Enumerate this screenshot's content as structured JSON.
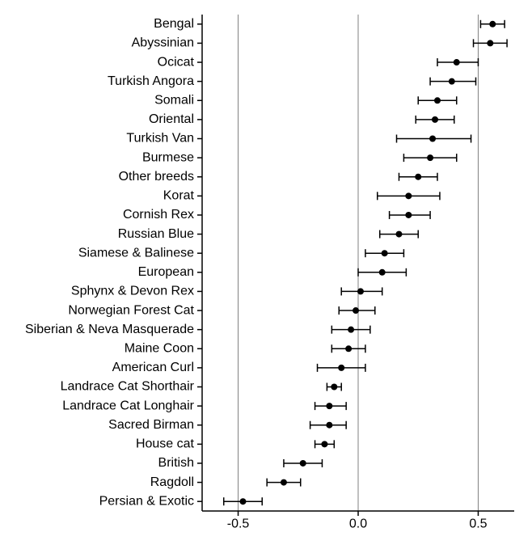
{
  "chart": {
    "type": "forest",
    "background_color": "#ffffff",
    "xlim": [
      -0.65,
      0.65
    ],
    "xticks": [
      -0.5,
      0.0,
      0.5
    ],
    "xtick_labels": [
      "-0.5",
      "0.0",
      "0.5"
    ],
    "gridlines_x": [
      -0.5,
      0.0,
      0.5
    ],
    "gridline_color": "#808080",
    "axis_color": "#000000",
    "point_color": "#000000",
    "label_fontsize": 16,
    "tick_fontsize": 16,
    "point_radius": 4,
    "errorbar_width": 1.5,
    "cap_half_height": 5,
    "items": [
      {
        "label": "Bengal",
        "value": 0.56,
        "low": 0.51,
        "high": 0.61
      },
      {
        "label": "Abyssinian",
        "value": 0.55,
        "low": 0.48,
        "high": 0.62
      },
      {
        "label": "Ocicat",
        "value": 0.41,
        "low": 0.33,
        "high": 0.5
      },
      {
        "label": "Turkish Angora",
        "value": 0.39,
        "low": 0.3,
        "high": 0.49
      },
      {
        "label": "Somali",
        "value": 0.33,
        "low": 0.25,
        "high": 0.41
      },
      {
        "label": "Oriental",
        "value": 0.32,
        "low": 0.24,
        "high": 0.4
      },
      {
        "label": "Turkish Van",
        "value": 0.31,
        "low": 0.16,
        "high": 0.47
      },
      {
        "label": "Burmese",
        "value": 0.3,
        "low": 0.19,
        "high": 0.41
      },
      {
        "label": "Other breeds",
        "value": 0.25,
        "low": 0.17,
        "high": 0.33
      },
      {
        "label": "Korat",
        "value": 0.21,
        "low": 0.08,
        "high": 0.34
      },
      {
        "label": "Cornish Rex",
        "value": 0.21,
        "low": 0.13,
        "high": 0.3
      },
      {
        "label": "Russian Blue",
        "value": 0.17,
        "low": 0.09,
        "high": 0.25
      },
      {
        "label": "Siamese & Balinese",
        "value": 0.11,
        "low": 0.03,
        "high": 0.19
      },
      {
        "label": "European",
        "value": 0.1,
        "low": 0.0,
        "high": 0.2
      },
      {
        "label": "Sphynx & Devon Rex",
        "value": 0.01,
        "low": -0.07,
        "high": 0.1
      },
      {
        "label": "Norwegian Forest Cat",
        "value": -0.01,
        "low": -0.08,
        "high": 0.07
      },
      {
        "label": "Siberian & Neva Masquerade",
        "value": -0.03,
        "low": -0.11,
        "high": 0.05
      },
      {
        "label": "Maine Coon",
        "value": -0.04,
        "low": -0.11,
        "high": 0.03
      },
      {
        "label": "American Curl",
        "value": -0.07,
        "low": -0.17,
        "high": 0.03
      },
      {
        "label": "Landrace Cat Shorthair",
        "value": -0.1,
        "low": -0.13,
        "high": -0.07
      },
      {
        "label": "Landrace Cat Longhair",
        "value": -0.12,
        "low": -0.18,
        "high": -0.05
      },
      {
        "label": "Sacred Birman",
        "value": -0.12,
        "low": -0.2,
        "high": -0.05
      },
      {
        "label": "House cat",
        "value": -0.14,
        "low": -0.18,
        "high": -0.1
      },
      {
        "label": "British",
        "value": -0.23,
        "low": -0.31,
        "high": -0.15
      },
      {
        "label": "Ragdoll",
        "value": -0.31,
        "low": -0.38,
        "high": -0.24
      },
      {
        "label": "Persian & Exotic",
        "value": -0.48,
        "low": -0.56,
        "high": -0.4
      }
    ]
  }
}
